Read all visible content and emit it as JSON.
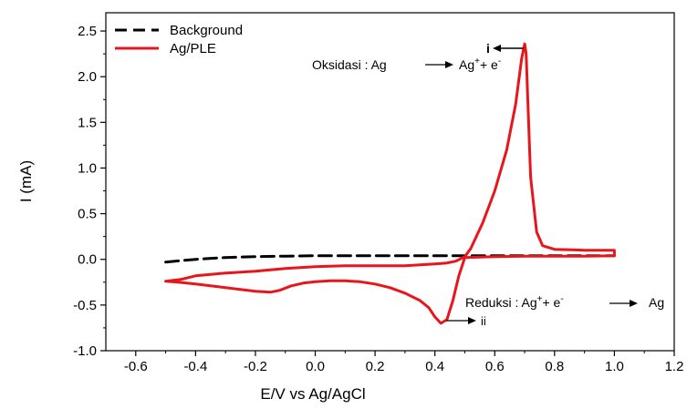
{
  "chart_data": {
    "type": "line",
    "xlabel": "E/V vs Ag/AgCl",
    "ylabel": "I (mA)",
    "xlim": [
      -0.7,
      1.2
    ],
    "ylim": [
      -1.0,
      2.7
    ],
    "xticks": [
      -0.6,
      -0.4,
      -0.2,
      0.0,
      0.2,
      0.4,
      0.6,
      0.8,
      1.0,
      1.2
    ],
    "xtick_labels": [
      "-0.6",
      "-0.4",
      "-0.2",
      "0.0",
      "0.2",
      "0.4",
      "0.6",
      "0.8",
      "1.0",
      "1.2"
    ],
    "yticks": [
      -1.0,
      -0.5,
      0.0,
      0.5,
      1.0,
      1.5,
      2.0,
      2.5
    ],
    "ytick_labels": [
      "-1.0",
      "-0.5",
      "0.0",
      "0.5",
      "1.0",
      "1.5",
      "2.0",
      "2.5"
    ],
    "grid": false,
    "legend_position": "top-left",
    "series": [
      {
        "name": "Background",
        "color": "#000000",
        "style": "dashed",
        "x": [
          -0.5,
          -0.4,
          -0.3,
          -0.2,
          -0.1,
          0.0,
          0.2,
          0.4,
          0.6,
          0.8,
          1.0
        ],
        "y": [
          -0.03,
          0.0,
          0.02,
          0.03,
          0.035,
          0.04,
          0.04,
          0.04,
          0.04,
          0.04,
          0.04
        ]
      },
      {
        "name": "Ag/PLE",
        "color": "#e8161b",
        "style": "solid",
        "x": [
          -0.5,
          -0.46,
          -0.4,
          -0.3,
          -0.2,
          -0.15,
          -0.12,
          -0.08,
          -0.04,
          0.0,
          0.05,
          0.1,
          0.15,
          0.2,
          0.25,
          0.3,
          0.35,
          0.38,
          0.4,
          0.42,
          0.44,
          0.46,
          0.48,
          0.5,
          0.6,
          0.7,
          0.8,
          0.9,
          1.0,
          1.0,
          0.9,
          0.8,
          0.76,
          0.74,
          0.72,
          0.71,
          0.705,
          0.7,
          0.69,
          0.67,
          0.64,
          0.6,
          0.56,
          0.52,
          0.5,
          0.47,
          0.44,
          0.4,
          0.3,
          0.2,
          0.1,
          0.0,
          -0.1,
          -0.2,
          -0.3,
          -0.4,
          -0.45,
          -0.5
        ],
        "y": [
          -0.24,
          -0.25,
          -0.27,
          -0.31,
          -0.35,
          -0.36,
          -0.34,
          -0.29,
          -0.26,
          -0.245,
          -0.235,
          -0.235,
          -0.245,
          -0.27,
          -0.31,
          -0.37,
          -0.45,
          -0.53,
          -0.63,
          -0.7,
          -0.66,
          -0.45,
          -0.18,
          0.02,
          0.03,
          0.035,
          0.035,
          0.035,
          0.04,
          0.1,
          0.1,
          0.11,
          0.15,
          0.3,
          0.9,
          1.8,
          2.25,
          2.36,
          2.2,
          1.7,
          1.2,
          0.75,
          0.4,
          0.12,
          0.03,
          -0.02,
          -0.04,
          -0.05,
          -0.07,
          -0.07,
          -0.07,
          -0.08,
          -0.1,
          -0.13,
          -0.15,
          -0.18,
          -0.22,
          -0.24
        ]
      }
    ],
    "annotations": {
      "peak_i_label": "i",
      "oxidation_prefix": "Oksidasi : Ag",
      "oxidation_product": "Ag",
      "oxidation_sup": "+",
      "oxidation_tail": "+ e",
      "oxidation_tail_sup": "-",
      "peak_ii_label": "ii",
      "reduction_prefix": "Reduksi :  Ag",
      "reduction_sup": "+",
      "reduction_mid": "+ e",
      "reduction_mid_sup": "-",
      "reduction_product": "Ag"
    }
  }
}
